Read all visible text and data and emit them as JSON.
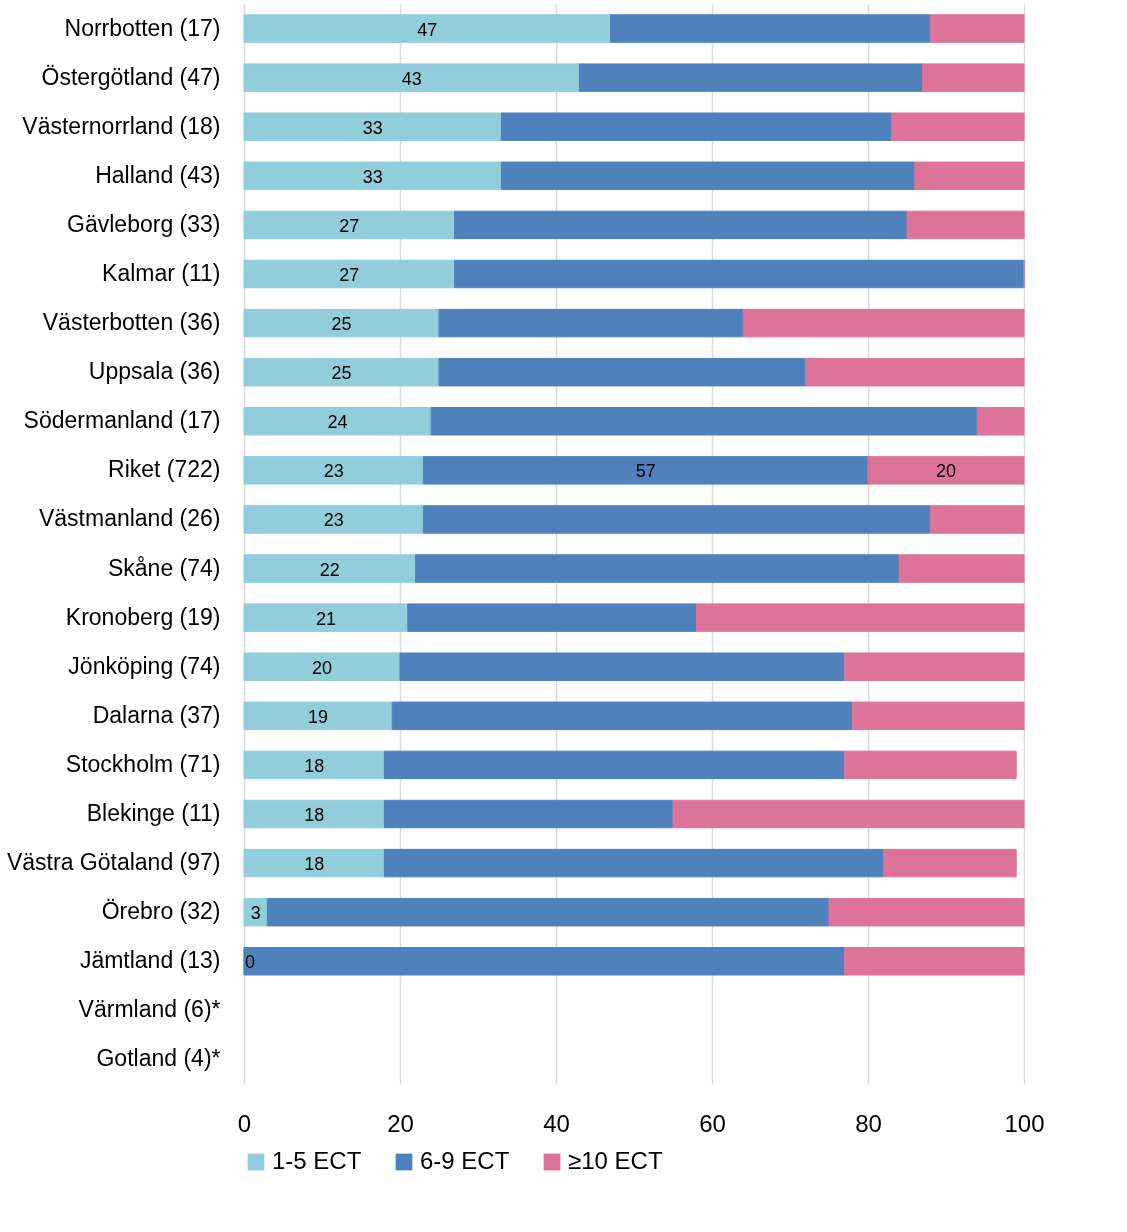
{
  "chart_data": {
    "type": "bar",
    "orientation": "horizontal",
    "stacked": true,
    "categories": [
      "Norrbotten (17)",
      "Östergötland (47)",
      "Västernorrland (18)",
      "Halland (43)",
      "Gävleborg (33)",
      "Kalmar (11)",
      "Västerbotten (36)",
      "Uppsala (36)",
      "Södermanland (17)",
      "Riket (722)",
      "Västmanland (26)",
      "Skåne (74)",
      "Kronoberg (19)",
      "Jönköping (74)",
      "Dalarna (37)",
      "Stockholm (71)",
      "Blekinge (11)",
      "Västra Götaland (97)",
      "Örebro (32)",
      "Jämtland (13)",
      "Värmland (6)*",
      "Gotland (4)*"
    ],
    "series": [
      {
        "name": "1-5 ECT",
        "color": "#92cddc",
        "values": [
          47,
          43,
          33,
          33,
          27,
          27,
          25,
          25,
          24,
          23,
          23,
          22,
          21,
          20,
          19,
          18,
          18,
          18,
          3,
          0,
          null,
          null
        ],
        "value_labels": [
          "47",
          "43",
          "33",
          "33",
          "27",
          "27",
          "25",
          "25",
          "24",
          "23",
          "23",
          "22",
          "21",
          "20",
          "19",
          "18",
          "18",
          "18",
          "3",
          "0",
          null,
          null
        ]
      },
      {
        "name": "6-9 ECT",
        "color": "#4f81bd",
        "values": [
          41,
          44,
          50,
          53,
          58,
          73,
          39,
          47,
          70,
          57,
          65,
          62,
          37,
          57,
          59,
          59,
          37,
          64,
          72,
          77,
          null,
          null
        ],
        "value_labels": [
          null,
          null,
          null,
          null,
          null,
          null,
          null,
          null,
          null,
          "57",
          null,
          null,
          null,
          null,
          null,
          null,
          null,
          null,
          null,
          null,
          null,
          null
        ]
      },
      {
        "name": "≥10 ECT",
        "color": "#dd7399",
        "values": [
          12,
          13,
          17,
          14,
          15,
          0,
          36,
          28,
          6,
          20,
          12,
          16,
          42,
          23,
          22,
          22,
          45,
          17,
          25,
          23,
          null,
          null
        ],
        "value_labels": [
          null,
          null,
          null,
          null,
          null,
          null,
          null,
          null,
          null,
          "20",
          null,
          null,
          null,
          null,
          null,
          null,
          null,
          null,
          null,
          null,
          null,
          null
        ]
      }
    ],
    "xlim": [
      0,
      100
    ],
    "xticks": [
      0,
      20,
      40,
      60,
      80,
      100
    ],
    "grid": "x",
    "legend": "bottom"
  }
}
